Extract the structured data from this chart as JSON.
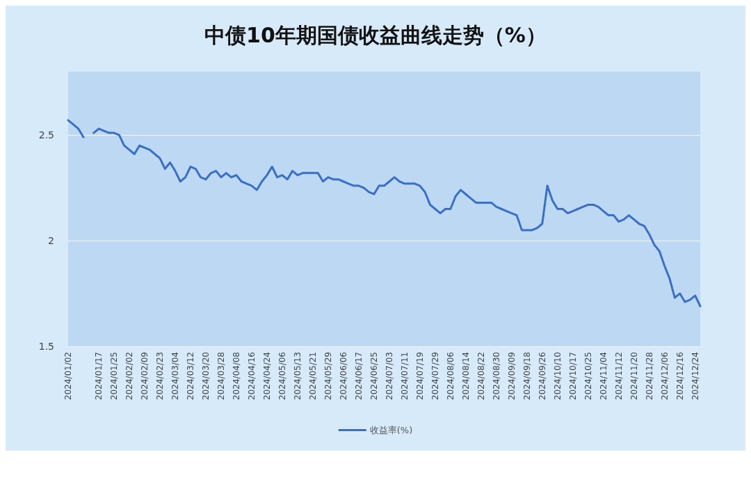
{
  "chart_data": {
    "type": "line",
    "title": "中债10年期国债收益曲线走势（%）",
    "categories": [
      "2024/01/02",
      null,
      null,
      null,
      null,
      null,
      "2024/01/17",
      null,
      null,
      "2024/01/25",
      null,
      null,
      "2024/02/02",
      null,
      null,
      "2024/02/09",
      null,
      null,
      "2024/02/23",
      null,
      null,
      "2024/03/04",
      null,
      null,
      "2024/03/12",
      null,
      null,
      "2024/03/20",
      null,
      null,
      "2024/03/28",
      null,
      null,
      "2024/04/08",
      null,
      null,
      "2024/04/16",
      null,
      null,
      "2024/04/24",
      null,
      null,
      "2024/05/06",
      null,
      null,
      "2024/05/13",
      null,
      null,
      "2024/05/21",
      null,
      null,
      "2024/05/29",
      null,
      null,
      "2024/06/06",
      null,
      null,
      "2024/06/17",
      null,
      null,
      "2024/06/25",
      null,
      null,
      "2024/07/03",
      null,
      null,
      "2024/07/11",
      null,
      null,
      "2024/07/19",
      null,
      null,
      "2024/07/29",
      null,
      null,
      "2024/08/06",
      null,
      null,
      "2024/08/14",
      null,
      null,
      "2024/08/22",
      null,
      null,
      "2024/08/30",
      null,
      null,
      "2024/09/09",
      null,
      null,
      "2024/09/18",
      null,
      null,
      "2024/09/26",
      null,
      null,
      "2024/10/10",
      null,
      null,
      "2024/10/17",
      null,
      null,
      "2024/10/25",
      null,
      null,
      "2024/11/04",
      null,
      null,
      "2024/11/12",
      null,
      null,
      "2024/11/20",
      null,
      null,
      "2024/11/28",
      null,
      null,
      "2024/12/06",
      null,
      null,
      "2024/12/16",
      null,
      null,
      "2024/12/24",
      null
    ],
    "series": [
      {
        "name": "收益率(%)",
        "color": "#3a6fc8",
        "values": [
          2.57,
          2.55,
          2.53,
          2.49,
          null,
          2.51,
          2.53,
          2.52,
          2.51,
          2.51,
          2.5,
          2.45,
          2.43,
          2.41,
          2.45,
          2.44,
          2.43,
          2.41,
          2.39,
          2.34,
          2.37,
          2.33,
          2.28,
          2.3,
          2.35,
          2.34,
          2.3,
          2.29,
          2.32,
          2.33,
          2.3,
          2.32,
          2.3,
          2.31,
          2.28,
          2.27,
          2.26,
          2.24,
          2.28,
          2.31,
          2.35,
          2.3,
          2.31,
          2.29,
          2.33,
          2.31,
          2.32,
          2.32,
          2.32,
          2.32,
          2.28,
          2.3,
          2.29,
          2.29,
          2.28,
          2.27,
          2.26,
          2.26,
          2.25,
          2.23,
          2.22,
          2.26,
          2.26,
          2.28,
          2.3,
          2.28,
          2.27,
          2.27,
          2.27,
          2.26,
          2.23,
          2.17,
          2.15,
          2.13,
          2.15,
          2.15,
          2.21,
          2.24,
          2.22,
          2.2,
          2.18,
          2.18,
          2.18,
          2.18,
          2.16,
          2.15,
          2.14,
          2.13,
          2.12,
          2.05,
          2.05,
          2.05,
          2.06,
          2.08,
          2.26,
          2.19,
          2.15,
          2.15,
          2.13,
          2.14,
          2.15,
          2.16,
          2.17,
          2.17,
          2.16,
          2.14,
          2.12,
          2.12,
          2.09,
          2.1,
          2.12,
          2.1,
          2.08,
          2.07,
          2.03,
          1.98,
          1.95,
          1.88,
          1.82,
          1.73,
          1.75,
          1.71,
          1.72,
          1.74,
          1.69
        ]
      }
    ],
    "ylim": [
      1.5,
      2.8
    ],
    "yticks": [
      1.5,
      2,
      2.5
    ],
    "grid": "y",
    "legend": "bottom",
    "marker": "none",
    "line_style": "solid"
  }
}
